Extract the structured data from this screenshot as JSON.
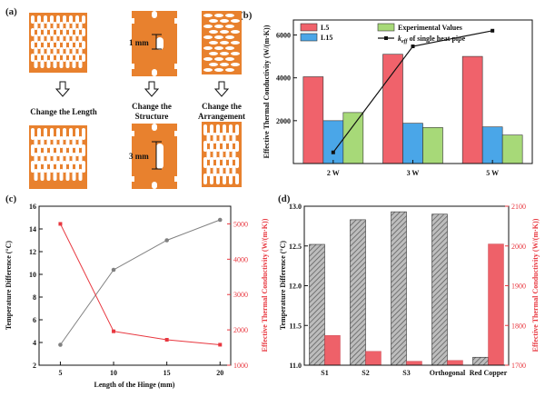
{
  "panel_labels": {
    "a": "(a)",
    "b": "(b)",
    "c": "(c)",
    "d": "(d)"
  },
  "panel_a": {
    "captions": [
      "Change the Length",
      "Change the Structure",
      "Change the Arrangement"
    ],
    "dimensions": {
      "short": "1 mm",
      "long": "3 mm"
    },
    "copper_color": "#e8812e"
  },
  "chart_data": [
    {
      "id": "b",
      "type": "bar",
      "categories": [
        "2 W",
        "3 W",
        "5 W"
      ],
      "series": [
        {
          "name": "L5",
          "color": "#f0626b",
          "values": [
            4050,
            5100,
            5000
          ]
        },
        {
          "name": "L15",
          "color": "#4aa6e8",
          "values": [
            2000,
            1880,
            1710
          ]
        },
        {
          "name": "Experimental Values",
          "color": "#a7d978",
          "values": [
            2380,
            1680,
            1330
          ]
        }
      ],
      "line": {
        "name": "k_eff of single heat pipe",
        "label_prefix": "k",
        "label_sub": "eff",
        "label_suffix": " of single heat pipe",
        "color": "#111111",
        "values": [
          520,
          5470,
          6200
        ]
      },
      "ylabel": "Effective Thermal Conductivity (W/(m·K))",
      "ylim": [
        0,
        6700
      ],
      "yticks": [
        2000,
        4000,
        6000
      ]
    },
    {
      "id": "c",
      "type": "line",
      "x": [
        5,
        10,
        15,
        20
      ],
      "xlabel": "Length of the Hinge (mm)",
      "series": [
        {
          "name": "Temperature Difference",
          "axis": "left",
          "color": "#808080",
          "values": [
            3.8,
            10.4,
            13.0,
            14.8
          ]
        },
        {
          "name": "Effective Thermal Conductivity",
          "axis": "right",
          "color": "#e8373f",
          "values": [
            5000,
            1960,
            1720,
            1580
          ]
        }
      ],
      "ylabel_left": "Temperature Difference (°C)",
      "ylabel_right": "Effective Thermal Conductivity (W/(m·K))",
      "xlim": [
        3,
        21
      ],
      "ylim_left": [
        2,
        16
      ],
      "ylim_right": [
        1000,
        5500
      ],
      "xticks": [
        5,
        10,
        15,
        20
      ],
      "yticks_left": [
        2,
        4,
        6,
        8,
        10,
        12,
        14,
        16
      ],
      "yticks_right": [
        1000,
        2000,
        3000,
        4000,
        5000
      ]
    },
    {
      "id": "d",
      "type": "bar",
      "categories": [
        "S1",
        "S2",
        "S3",
        "Orthogonal",
        "Red Copper"
      ],
      "series": [
        {
          "name": "Temperature Difference",
          "axis": "left",
          "color": "#b0b0b0",
          "pattern": "hatched",
          "values": [
            12.52,
            12.83,
            12.93,
            12.9,
            11.1
          ]
        },
        {
          "name": "Effective Thermal Conductivity",
          "axis": "right",
          "color": "#ee6169",
          "values": [
            1775,
            1735,
            1710,
            1712,
            2005
          ]
        }
      ],
      "ylabel_left": "Temperature Difference (°C)",
      "ylabel_right": "Effective Thermal Conductivity (W/(m·K))",
      "ylim_left": [
        11.0,
        13.0
      ],
      "ylim_right": [
        1700,
        2100
      ],
      "yticks_left": [
        11.0,
        11.5,
        12.0,
        12.5,
        13.0
      ],
      "yticks_right": [
        1700,
        1800,
        1900,
        2000,
        2100
      ]
    }
  ]
}
